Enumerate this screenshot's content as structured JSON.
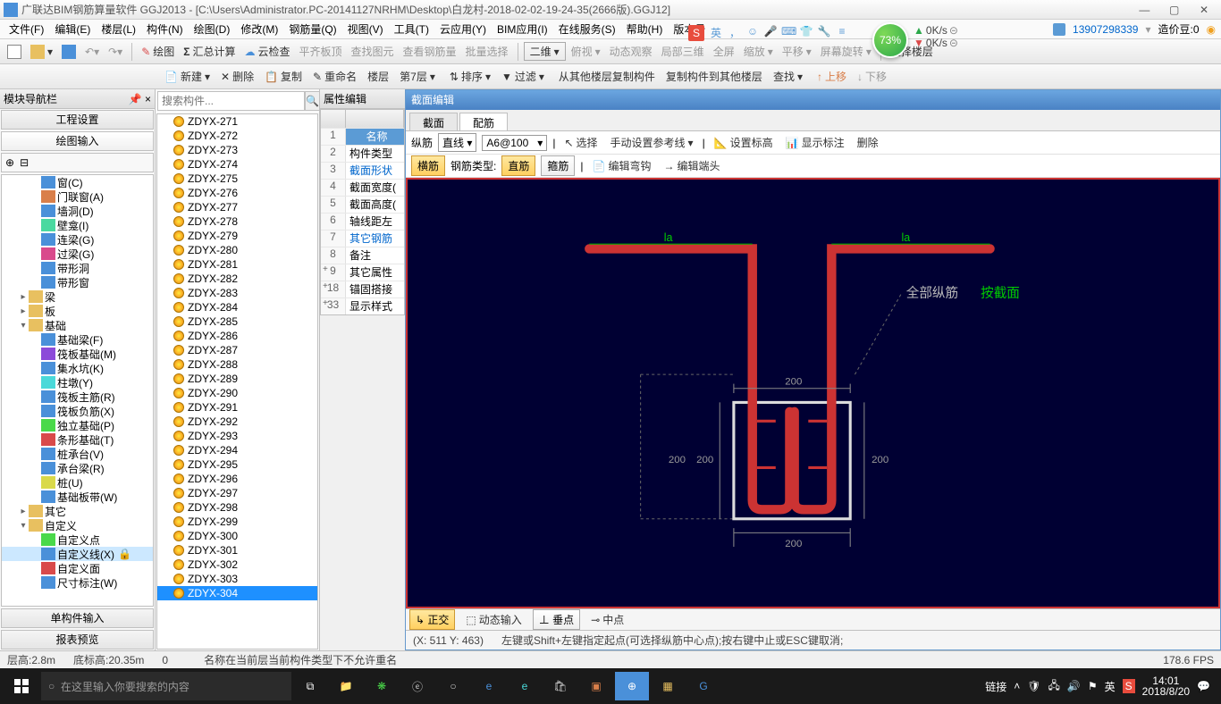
{
  "window": {
    "title": "广联达BIM钢筋算量软件 GGJ2013 - [C:\\Users\\Administrator.PC-20141127NRHM\\Desktop\\白龙村-2018-02-02-19-24-35(2666版).GGJ12]",
    "user_id": "13907298339",
    "coin_label": "造价豆:0"
  },
  "menu": [
    "文件(F)",
    "编辑(E)",
    "楼层(L)",
    "构件(N)",
    "绘图(D)",
    "修改(M)",
    "钢筋量(Q)",
    "视图(V)",
    "工具(T)",
    "云应用(Y)",
    "BIM应用(I)",
    "在线服务(S)",
    "帮助(H)",
    "版本号"
  ],
  "toolbar1": {
    "items": [
      "绘图",
      "汇总计算",
      "云检查",
      "平齐板顶",
      "查找图元",
      "查看钢筋量",
      "批量选择"
    ],
    "view_mode": "二维",
    "rest": [
      "俯视",
      "动态观察",
      "局部三维",
      "全屏",
      "缩放",
      "平移",
      "屏幕旋转",
      "选择楼层"
    ]
  },
  "toolbar2": {
    "items": [
      "新建",
      "删除",
      "复制",
      "重命名"
    ],
    "floor": "楼层",
    "floor_val": "第7层",
    "rest": [
      "排序",
      "过滤",
      "从其他楼层复制构件",
      "复制构件到其他楼层",
      "查找",
      "上移",
      "下移"
    ]
  },
  "nav_panel_title": "模块导航栏",
  "sections": {
    "eng": "工程设置",
    "draw": "绘图输入",
    "single": "单构件输入",
    "report": "报表预览"
  },
  "tree": [
    {
      "lvl": 2,
      "ico": "#4a90d9",
      "txt": "窗(C)"
    },
    {
      "lvl": 2,
      "ico": "#d97f4a",
      "txt": "门联窗(A)"
    },
    {
      "lvl": 2,
      "ico": "#4a90d9",
      "txt": "墙洞(D)"
    },
    {
      "lvl": 2,
      "ico": "#4ad9a0",
      "txt": "壁龛(I)"
    },
    {
      "lvl": 2,
      "ico": "#4a90d9",
      "txt": "连梁(G)"
    },
    {
      "lvl": 2,
      "ico": "#d94a8c",
      "txt": "过梁(G)"
    },
    {
      "lvl": 2,
      "ico": "#4a90d9",
      "txt": "带形洞"
    },
    {
      "lvl": 2,
      "ico": "#4a90d9",
      "txt": "带形窗"
    },
    {
      "lvl": 1,
      "exp": "▸",
      "ico": "#e8c060",
      "txt": "梁"
    },
    {
      "lvl": 1,
      "exp": "▸",
      "ico": "#e8c060",
      "txt": "板"
    },
    {
      "lvl": 1,
      "exp": "▾",
      "ico": "#e8c060",
      "txt": "基础"
    },
    {
      "lvl": 2,
      "ico": "#4a90d9",
      "txt": "基础梁(F)"
    },
    {
      "lvl": 2,
      "ico": "#8c4ad9",
      "txt": "筏板基础(M)"
    },
    {
      "lvl": 2,
      "ico": "#4a90d9",
      "txt": "集水坑(K)"
    },
    {
      "lvl": 2,
      "ico": "#4ad9d9",
      "txt": "柱墩(Y)"
    },
    {
      "lvl": 2,
      "ico": "#4a90d9",
      "txt": "筏板主筋(R)"
    },
    {
      "lvl": 2,
      "ico": "#4a90d9",
      "txt": "筏板负筋(X)"
    },
    {
      "lvl": 2,
      "ico": "#4ad94a",
      "txt": "独立基础(P)"
    },
    {
      "lvl": 2,
      "ico": "#d94a4a",
      "txt": "条形基础(T)"
    },
    {
      "lvl": 2,
      "ico": "#4a90d9",
      "txt": "桩承台(V)"
    },
    {
      "lvl": 2,
      "ico": "#4a90d9",
      "txt": "承台梁(R)"
    },
    {
      "lvl": 2,
      "ico": "#d9d94a",
      "txt": "桩(U)"
    },
    {
      "lvl": 2,
      "ico": "#4a90d9",
      "txt": "基础板带(W)"
    },
    {
      "lvl": 1,
      "exp": "▸",
      "ico": "#e8c060",
      "txt": "其它"
    },
    {
      "lvl": 1,
      "exp": "▾",
      "ico": "#e8c060",
      "txt": "自定义"
    },
    {
      "lvl": 2,
      "ico": "#4ad94a",
      "txt": "自定义点"
    },
    {
      "lvl": 2,
      "ico": "#4a90d9",
      "txt": "自定义线(X)",
      "sel": true,
      "extra": "🔒"
    },
    {
      "lvl": 2,
      "ico": "#d94a4a",
      "txt": "自定义面"
    },
    {
      "lvl": 2,
      "ico": "#4a90d9",
      "txt": "尺寸标注(W)"
    }
  ],
  "search_placeholder": "搜索构件...",
  "components": [
    "ZDYX-271",
    "ZDYX-272",
    "ZDYX-273",
    "ZDYX-274",
    "ZDYX-275",
    "ZDYX-276",
    "ZDYX-277",
    "ZDYX-278",
    "ZDYX-279",
    "ZDYX-280",
    "ZDYX-281",
    "ZDYX-282",
    "ZDYX-283",
    "ZDYX-284",
    "ZDYX-285",
    "ZDYX-286",
    "ZDYX-287",
    "ZDYX-288",
    "ZDYX-289",
    "ZDYX-290",
    "ZDYX-291",
    "ZDYX-292",
    "ZDYX-293",
    "ZDYX-294",
    "ZDYX-295",
    "ZDYX-296",
    "ZDYX-297",
    "ZDYX-298",
    "ZDYX-299",
    "ZDYX-300",
    "ZDYX-301",
    "ZDYX-302",
    "ZDYX-303",
    "ZDYX-304"
  ],
  "comp_selected": "ZDYX-304",
  "prop_title": "属性编辑",
  "props": [
    {
      "n": "1",
      "t": "名称",
      "blue": true,
      "hdr": true
    },
    {
      "n": "2",
      "t": "构件类型"
    },
    {
      "n": "3",
      "t": "截面形状",
      "blue": true
    },
    {
      "n": "4",
      "t": "截面宽度("
    },
    {
      "n": "5",
      "t": "截面高度("
    },
    {
      "n": "6",
      "t": "轴线距左"
    },
    {
      "n": "7",
      "t": "其它钢筋",
      "blue": true
    },
    {
      "n": "8",
      "t": "备注"
    },
    {
      "n": "9",
      "t": "其它属性",
      "plus": "+"
    },
    {
      "n": "18",
      "t": "锚固搭接",
      "plus": "+"
    },
    {
      "n": "33",
      "t": "显示样式",
      "plus": "+"
    }
  ],
  "section_editor": {
    "title": "截面编辑",
    "tabs": [
      "截面",
      "配筋"
    ],
    "active_tab": 1,
    "row1": {
      "lbl": "纵筋",
      "shape": "直线",
      "spec": "A6@100",
      "btns": [
        "选择",
        "手动设置参考线",
        "设置标高",
        "显示标注",
        "删除"
      ]
    },
    "row2": {
      "lbl": "横筋",
      "type_lbl": "钢筋类型:",
      "active": "直筋",
      "other": "箍筋",
      "btns": [
        "编辑弯钩",
        "编辑端头"
      ]
    },
    "snap": {
      "ortho": "正交",
      "dyn": "动态输入",
      "perp": "垂点",
      "mid": "中点"
    },
    "coord": "(X: 511 Y: 463)",
    "hint": "左键或Shift+左键指定起点(可选择纵筋中心点);按右键中止或ESC键取消;"
  },
  "diagram": {
    "bg": "#000033",
    "rebar_color": "#cc3333",
    "box_color": "#dddddd",
    "dim_color": "#888888",
    "labels": {
      "all": "全部纵筋",
      "by": "按截面",
      "la": "la"
    },
    "dims": {
      "w": "200",
      "h": "200"
    }
  },
  "status": {
    "layer_h": "层高:2.8m",
    "bottom_h": "底标高:20.35m",
    "zero": "0",
    "msg": "名称在当前层当前构件类型下不允许重名",
    "fps": "178.6 FPS"
  },
  "badge": "73%",
  "net": {
    "up": "0K/s",
    "down": "0K/s"
  },
  "taskbar": {
    "search": "在这里输入你要搜索的内容",
    "link": "链接",
    "time": "14:01",
    "date": "2018/8/20"
  }
}
